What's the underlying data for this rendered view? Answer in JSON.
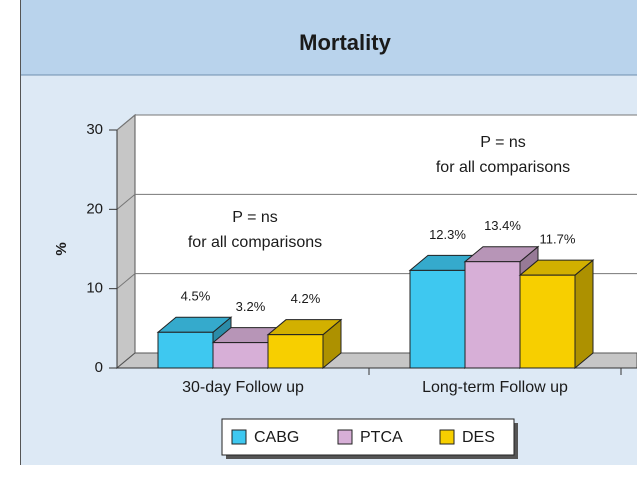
{
  "chart_data": {
    "type": "bar3d",
    "title": "Mortality",
    "y_label": "%",
    "categories": [
      "30-day Follow up",
      "Long-term Follow up"
    ],
    "series": [
      {
        "name": "CABG",
        "color": "#3ec8f0",
        "values": [
          4.5,
          12.3
        ],
        "value_labels": [
          "4.5%",
          "12.3%"
        ]
      },
      {
        "name": "PTCA",
        "color": "#d7afd7",
        "values": [
          3.2,
          13.4
        ],
        "value_labels": [
          "3.2%",
          "13.4%"
        ]
      },
      {
        "name": "DES",
        "color": "#f7cf00",
        "values": [
          4.2,
          11.7
        ],
        "value_labels": [
          "4.2%",
          "11.7%"
        ]
      }
    ],
    "annotations": [
      [
        "P = ns",
        "for all comparisons"
      ],
      [
        "P = ns",
        "for all comparisons"
      ]
    ],
    "ylim": [
      0,
      30
    ],
    "yticks": [
      0,
      10,
      20,
      30
    ],
    "grid": true
  }
}
